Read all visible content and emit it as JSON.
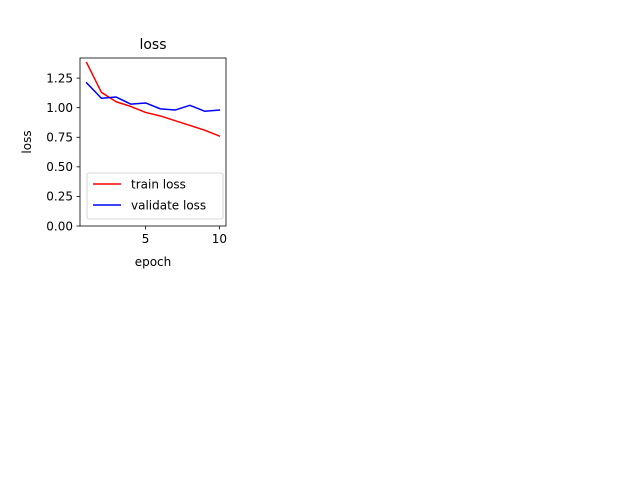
{
  "chart_data": {
    "type": "line",
    "title": "loss",
    "xlabel": "epoch",
    "ylabel": "loss",
    "xlim": [
      0.55,
      10.45
    ],
    "ylim": [
      0.0,
      1.42
    ],
    "xticks": [
      5,
      10
    ],
    "xtick_labels": [
      "5",
      "10"
    ],
    "yticks": [
      0.0,
      0.25,
      0.5,
      0.75,
      1.0,
      1.25
    ],
    "ytick_labels": [
      "0.00",
      "0.25",
      "0.50",
      "0.75",
      "1.00",
      "1.25"
    ],
    "grid": false,
    "legend_position": "lower-left",
    "x": [
      1,
      2,
      3,
      4,
      5,
      6,
      7,
      8,
      9,
      10
    ],
    "series": [
      {
        "name": "train loss",
        "color": "#ff0000",
        "values": [
          1.38,
          1.13,
          1.05,
          1.01,
          0.96,
          0.93,
          0.89,
          0.85,
          0.81,
          0.76
        ]
      },
      {
        "name": "validate loss",
        "color": "#0000ff",
        "values": [
          1.21,
          1.08,
          1.09,
          1.03,
          1.04,
          0.99,
          0.98,
          1.02,
          0.97,
          0.98
        ]
      }
    ]
  }
}
